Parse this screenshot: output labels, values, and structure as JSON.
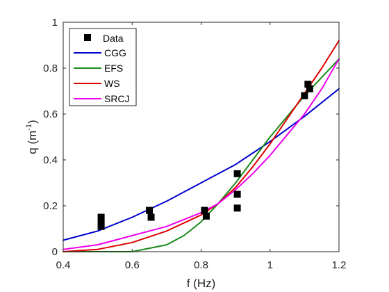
{
  "chart_data": {
    "type": "line",
    "xlabel": "f (Hz)",
    "ylabel_main": "q (m",
    "ylabel_exp": "-1",
    "ylabel_close": ")",
    "xlim": [
      0.4,
      1.2
    ],
    "ylim": [
      0,
      1
    ],
    "xticks": [
      0.4,
      0.6,
      0.8,
      1,
      1.2
    ],
    "xtick_labels": [
      "0.4",
      "0.6",
      "0.8",
      "1",
      "1.2"
    ],
    "yticks": [
      0,
      0.2,
      0.4,
      0.6,
      0.8,
      1
    ],
    "ytick_labels": [
      "0",
      "0.2",
      "0.4",
      "0.6",
      "0.8",
      "1"
    ],
    "grid": false,
    "legend_position": "top-left",
    "data_series": {
      "name": "Data",
      "color": "#000000",
      "points": [
        {
          "x": 0.51,
          "y": 0.15
        },
        {
          "x": 0.51,
          "y": 0.13
        },
        {
          "x": 0.51,
          "y": 0.11
        },
        {
          "x": 0.65,
          "y": 0.18
        },
        {
          "x": 0.655,
          "y": 0.15
        },
        {
          "x": 0.81,
          "y": 0.18
        },
        {
          "x": 0.815,
          "y": 0.155
        },
        {
          "x": 0.905,
          "y": 0.34
        },
        {
          "x": 0.905,
          "y": 0.25
        },
        {
          "x": 0.905,
          "y": 0.19
        },
        {
          "x": 1.1,
          "y": 0.68
        },
        {
          "x": 1.11,
          "y": 0.73
        },
        {
          "x": 1.115,
          "y": 0.71
        }
      ]
    },
    "series": [
      {
        "name": "CGG",
        "color": "#0000cd",
        "x": [
          0.4,
          0.5,
          0.6,
          0.7,
          0.8,
          0.9,
          1.0,
          1.1,
          1.2
        ],
        "y": [
          0.05,
          0.09,
          0.15,
          0.22,
          0.3,
          0.38,
          0.48,
          0.59,
          0.71
        ]
      },
      {
        "name": "EFS",
        "color": "#1a8a1a",
        "x": [
          0.4,
          0.6,
          0.7,
          0.75,
          0.8,
          0.85,
          0.9,
          0.95,
          1.0,
          1.05,
          1.1,
          1.15,
          1.2
        ],
        "y": [
          0.0,
          0.0,
          0.03,
          0.07,
          0.13,
          0.21,
          0.3,
          0.4,
          0.5,
          0.59,
          0.68,
          0.76,
          0.84
        ]
      },
      {
        "name": "WS",
        "color": "#e00000",
        "x": [
          0.4,
          0.5,
          0.6,
          0.7,
          0.8,
          0.85,
          0.9,
          0.95,
          1.0,
          1.05,
          1.1,
          1.15,
          1.2
        ],
        "y": [
          0.0,
          0.01,
          0.04,
          0.09,
          0.16,
          0.21,
          0.28,
          0.37,
          0.47,
          0.58,
          0.69,
          0.8,
          0.92
        ]
      },
      {
        "name": "SRCJ",
        "color": "#ee00ee",
        "x": [
          0.4,
          0.5,
          0.6,
          0.7,
          0.8,
          0.85,
          0.9,
          0.95,
          1.0,
          1.05,
          1.1,
          1.15,
          1.2
        ],
        "y": [
          0.01,
          0.03,
          0.07,
          0.11,
          0.17,
          0.21,
          0.27,
          0.34,
          0.42,
          0.51,
          0.6,
          0.71,
          0.84
        ]
      }
    ]
  }
}
